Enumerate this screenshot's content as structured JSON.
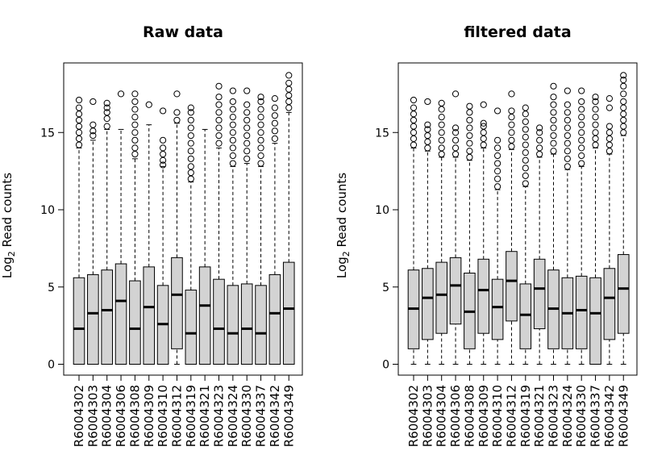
{
  "chart_data": [
    {
      "type": "boxplot",
      "title": "Raw data",
      "ylabel": {
        "base": "Log",
        "sub": "2",
        "rest": " Read counts"
      },
      "ylim": [
        0,
        19
      ],
      "yticks": [
        0,
        5,
        10,
        15
      ],
      "grid": false,
      "categories": [
        "R6004302",
        "R6004303",
        "R6004304",
        "R6004306",
        "R6004308",
        "R6004309",
        "R6004310",
        "R6004312",
        "R6004319",
        "R6004321",
        "R6004323",
        "R6004324",
        "R6004330",
        "R6004337",
        "R6004342",
        "R6004349"
      ],
      "boxes": [
        {
          "min": 0,
          "q1": 0,
          "median": 2.3,
          "q3": 5.6,
          "max": 14.0,
          "outliers": [
            14.2,
            14.6,
            15.0,
            15.4,
            15.8,
            16.2,
            16.6,
            17.1
          ]
        },
        {
          "min": 0,
          "q1": 0,
          "median": 3.3,
          "q3": 5.8,
          "max": 14.5,
          "outliers": [
            14.8,
            15.1,
            15.5,
            17.0
          ]
        },
        {
          "min": 0,
          "q1": 0,
          "median": 3.5,
          "q3": 6.1,
          "max": 15.2,
          "outliers": [
            15.4,
            15.9,
            16.3,
            16.6,
            16.9
          ]
        },
        {
          "min": 0,
          "q1": 0,
          "median": 4.1,
          "q3": 6.5,
          "max": 15.2,
          "outliers": [
            17.5
          ]
        },
        {
          "min": 0,
          "q1": 0,
          "median": 2.3,
          "q3": 5.4,
          "max": 13.3,
          "outliers": [
            13.6,
            14.0,
            14.5,
            15.0,
            15.5,
            16.0,
            16.5,
            17.0,
            17.5
          ]
        },
        {
          "min": 0,
          "q1": 0,
          "median": 3.7,
          "q3": 6.3,
          "max": 15.5,
          "outliers": [
            16.8
          ]
        },
        {
          "min": 0,
          "q1": 0,
          "median": 2.6,
          "q3": 5.1,
          "max": 12.8,
          "outliers": [
            12.9,
            13.2,
            13.6,
            14.0,
            14.5,
            16.4
          ]
        },
        {
          "min": 0,
          "q1": 1.0,
          "median": 4.5,
          "q3": 6.9,
          "max": 15.6,
          "outliers": [
            15.8,
            16.3,
            17.5
          ]
        },
        {
          "min": 0,
          "q1": 0,
          "median": 2.0,
          "q3": 4.8,
          "max": 11.8,
          "outliers": [
            12.0,
            12.4,
            12.8,
            13.3,
            13.8,
            14.3,
            14.8,
            15.3,
            15.8,
            16.3,
            16.6
          ]
        },
        {
          "min": 0,
          "q1": 0,
          "median": 3.8,
          "q3": 6.3,
          "max": 15.2,
          "outliers": []
        },
        {
          "min": 0,
          "q1": 0,
          "median": 2.3,
          "q3": 5.5,
          "max": 14.0,
          "outliers": [
            14.3,
            14.8,
            15.3,
            15.8,
            16.3,
            16.8,
            17.3,
            18.0
          ]
        },
        {
          "min": 0,
          "q1": 0,
          "median": 2.0,
          "q3": 5.1,
          "max": 12.8,
          "outliers": [
            13.0,
            13.5,
            14.0,
            14.5,
            15.0,
            15.5,
            16.0,
            16.5,
            17.0,
            17.7
          ]
        },
        {
          "min": 0,
          "q1": 0,
          "median": 2.3,
          "q3": 5.2,
          "max": 13.0,
          "outliers": [
            13.3,
            13.8,
            14.3,
            14.8,
            15.3,
            15.8,
            16.3,
            16.8,
            17.7
          ]
        },
        {
          "min": 0,
          "q1": 0,
          "median": 2.0,
          "q3": 5.1,
          "max": 12.8,
          "outliers": [
            13.0,
            13.5,
            14.0,
            14.5,
            15.0,
            15.5,
            16.0,
            16.5,
            17.0,
            17.3
          ]
        },
        {
          "min": 0,
          "q1": 0,
          "median": 3.3,
          "q3": 5.8,
          "max": 14.3,
          "outliers": [
            14.6,
            15.1,
            15.6,
            16.1,
            16.6,
            17.2
          ]
        },
        {
          "min": 0,
          "q1": 0,
          "median": 3.6,
          "q3": 6.6,
          "max": 16.3,
          "outliers": [
            16.6,
            17.0,
            17.4,
            17.8,
            18.2,
            18.7
          ]
        }
      ]
    },
    {
      "type": "boxplot",
      "title": "filtered data",
      "ylabel": {
        "base": "Log",
        "sub": "2",
        "rest": " Read counts"
      },
      "ylim": [
        0,
        19
      ],
      "yticks": [
        0,
        5,
        10,
        15
      ],
      "grid": false,
      "categories": [
        "R6004302",
        "R6004303",
        "R6004304",
        "R6004306",
        "R6004308",
        "R6004309",
        "R6004310",
        "R6004312",
        "R6004319",
        "R6004321",
        "R6004323",
        "R6004324",
        "R6004330",
        "R6004337",
        "R6004342",
        "R6004349"
      ],
      "boxes": [
        {
          "min": 0,
          "q1": 1.0,
          "median": 3.6,
          "q3": 6.1,
          "max": 14.0,
          "outliers": [
            14.2,
            14.6,
            15.0,
            15.4,
            15.8,
            16.2,
            16.6,
            17.1
          ]
        },
        {
          "min": 0,
          "q1": 1.6,
          "median": 4.3,
          "q3": 6.2,
          "max": 13.8,
          "outliers": [
            14.0,
            14.4,
            14.8,
            15.2,
            15.5,
            17.0
          ]
        },
        {
          "min": 0,
          "q1": 2.0,
          "median": 4.5,
          "q3": 6.6,
          "max": 13.4,
          "outliers": [
            13.6,
            14.0,
            14.5,
            15.0,
            15.5,
            16.0,
            16.5,
            16.9
          ]
        },
        {
          "min": 0,
          "q1": 2.6,
          "median": 5.1,
          "q3": 6.9,
          "max": 13.4,
          "outliers": [
            13.6,
            14.0,
            14.5,
            15.0,
            15.3,
            17.5
          ]
        },
        {
          "min": 0,
          "q1": 1.0,
          "median": 3.4,
          "q3": 5.9,
          "max": 13.2,
          "outliers": [
            13.4,
            13.8,
            14.3,
            14.8,
            15.3,
            15.8,
            16.3,
            16.7
          ]
        },
        {
          "min": 0,
          "q1": 2.0,
          "median": 4.8,
          "q3": 6.8,
          "max": 14.0,
          "outliers": [
            14.2,
            14.6,
            15.0,
            15.4,
            15.6,
            16.8
          ]
        },
        {
          "min": 0,
          "q1": 1.6,
          "median": 3.7,
          "q3": 5.5,
          "max": 11.3,
          "outliers": [
            11.5,
            12.0,
            12.5,
            13.0,
            13.5,
            14.0,
            14.5,
            16.4
          ]
        },
        {
          "min": 0,
          "q1": 2.8,
          "median": 5.4,
          "q3": 7.3,
          "max": 13.9,
          "outliers": [
            14.1,
            14.5,
            15.0,
            15.5,
            16.0,
            16.4,
            17.5
          ]
        },
        {
          "min": 0,
          "q1": 1.0,
          "median": 3.2,
          "q3": 5.2,
          "max": 11.5,
          "outliers": [
            11.7,
            12.2,
            12.7,
            13.2,
            13.7,
            14.2,
            14.7,
            15.2,
            15.7,
            16.2,
            16.6
          ]
        },
        {
          "min": 0,
          "q1": 2.3,
          "median": 4.9,
          "q3": 6.8,
          "max": 13.4,
          "outliers": [
            13.6,
            14.0,
            14.5,
            15.0,
            15.3
          ]
        },
        {
          "min": 0,
          "q1": 1.0,
          "median": 3.6,
          "q3": 6.1,
          "max": 13.6,
          "outliers": [
            13.8,
            14.3,
            14.8,
            15.3,
            15.8,
            16.3,
            16.8,
            17.3,
            18.0
          ]
        },
        {
          "min": 0,
          "q1": 1.0,
          "median": 3.3,
          "q3": 5.6,
          "max": 12.6,
          "outliers": [
            12.8,
            13.3,
            13.8,
            14.3,
            14.8,
            15.3,
            15.8,
            16.3,
            16.8,
            17.7
          ]
        },
        {
          "min": 0,
          "q1": 1.0,
          "median": 3.5,
          "q3": 5.7,
          "max": 12.8,
          "outliers": [
            13.0,
            13.5,
            14.0,
            14.5,
            15.0,
            15.5,
            16.0,
            16.5,
            17.0,
            17.7
          ]
        },
        {
          "min": 0,
          "q1": 0,
          "median": 3.3,
          "q3": 5.6,
          "max": 14.0,
          "outliers": [
            14.2,
            14.6,
            15.0,
            15.5,
            16.0,
            16.5,
            17.0,
            17.3
          ]
        },
        {
          "min": 0,
          "q1": 1.6,
          "median": 4.3,
          "q3": 6.2,
          "max": 13.6,
          "outliers": [
            13.8,
            14.2,
            14.6,
            15.0,
            15.4,
            16.6,
            17.2
          ]
        },
        {
          "min": 0,
          "q1": 2.0,
          "median": 4.9,
          "q3": 7.1,
          "max": 14.8,
          "outliers": [
            15.0,
            15.4,
            15.8,
            16.2,
            16.6,
            17.0,
            17.5,
            18.0,
            18.4,
            18.7
          ]
        }
      ]
    }
  ]
}
